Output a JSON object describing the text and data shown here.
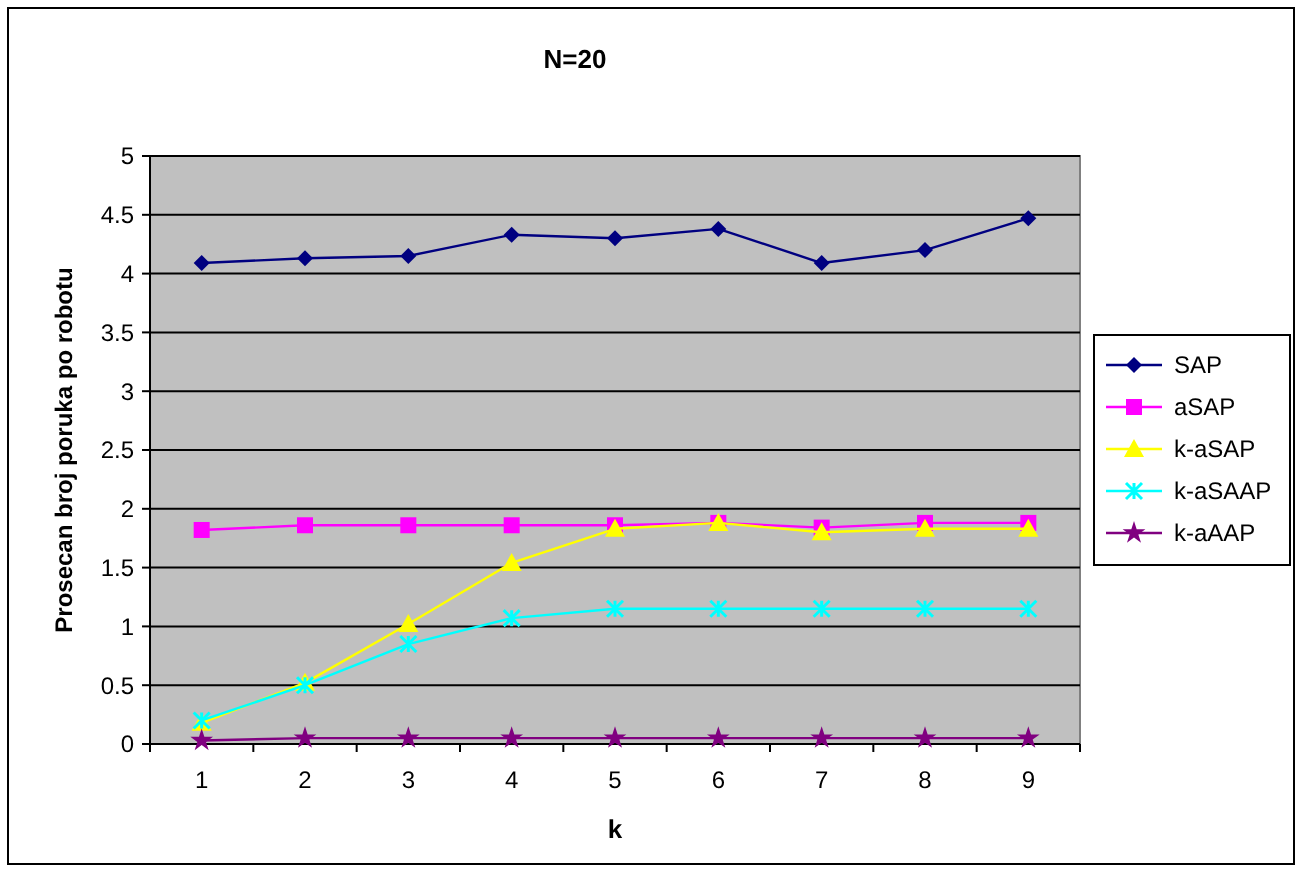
{
  "chart_data": {
    "type": "line",
    "title": "N=20",
    "xlabel": "k",
    "ylabel": "Prosecan broj poruka po robotu",
    "categories": [
      "1",
      "2",
      "3",
      "4",
      "5",
      "6",
      "7",
      "8",
      "9"
    ],
    "ylim": [
      0,
      5
    ],
    "yticks": [
      0,
      0.5,
      1,
      1.5,
      2,
      2.5,
      3,
      3.5,
      4,
      4.5,
      5
    ],
    "grid": "y",
    "legend": "right",
    "series": [
      {
        "name": "SAP",
        "color": "#000080",
        "marker": "diamond",
        "values": [
          4.09,
          4.13,
          4.15,
          4.33,
          4.3,
          4.38,
          4.09,
          4.2,
          4.47
        ]
      },
      {
        "name": "aSAP",
        "color": "#ff00ff",
        "marker": "square",
        "values": [
          1.82,
          1.86,
          1.86,
          1.86,
          1.86,
          1.88,
          1.84,
          1.88,
          1.88
        ]
      },
      {
        "name": "k-aSAP",
        "color": "#ffff00",
        "marker": "triangle",
        "values": [
          0.18,
          0.52,
          1.02,
          1.54,
          1.83,
          1.88,
          1.8,
          1.83,
          1.83
        ]
      },
      {
        "name": "k-aSAAP",
        "color": "#00ffff",
        "marker": "cross",
        "values": [
          0.2,
          0.5,
          0.85,
          1.07,
          1.15,
          1.15,
          1.15,
          1.15,
          1.15
        ]
      },
      {
        "name": "k-aAAP",
        "color": "#800080",
        "marker": "star",
        "values": [
          0.03,
          0.05,
          0.05,
          0.05,
          0.05,
          0.05,
          0.05,
          0.05,
          0.05
        ]
      }
    ]
  }
}
